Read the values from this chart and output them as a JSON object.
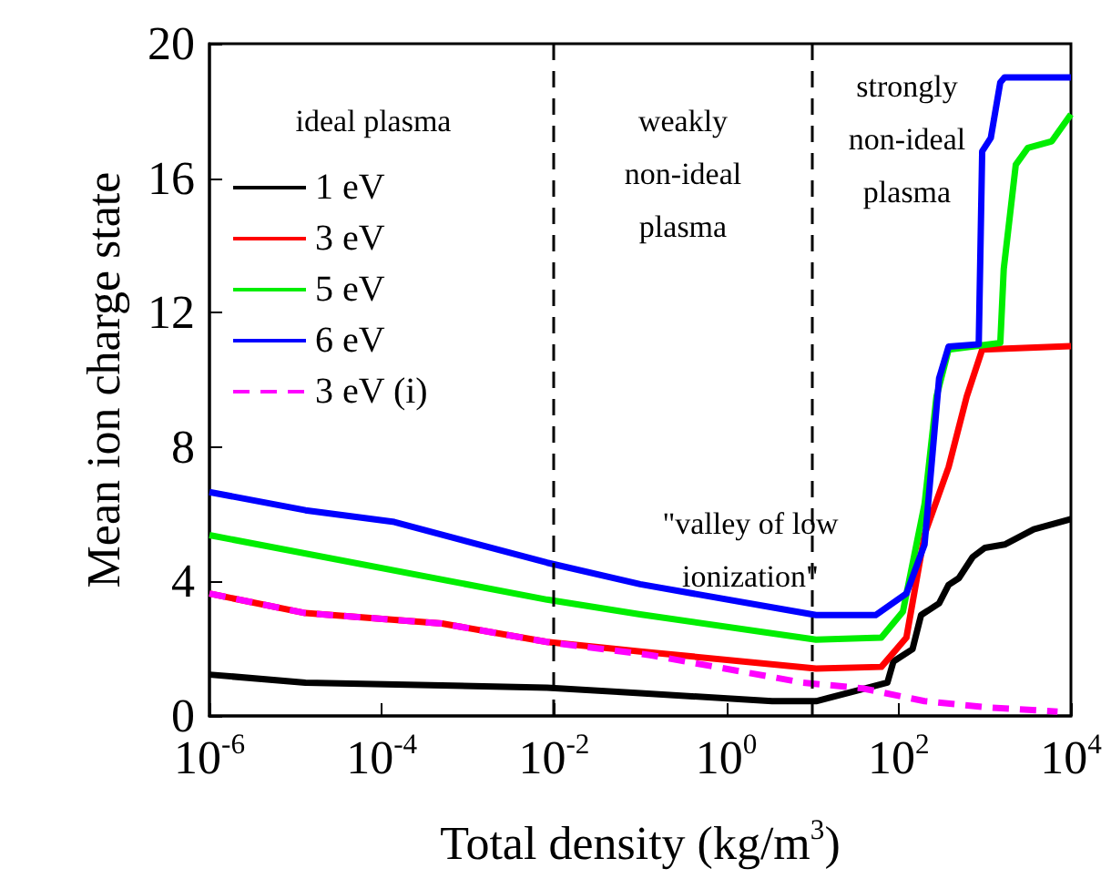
{
  "chart_data": {
    "type": "line",
    "xlabel": "Total density (kg/m$^{3}$)",
    "ylabel": "Mean ion charge state",
    "log": "x",
    "xlim": [
      1e-06,
      10000
    ],
    "ylim": [
      0,
      20
    ],
    "xticks": [
      {
        "value": 1e-06,
        "label": "10$^{-6}$"
      },
      {
        "value": 0.0001,
        "label": "10$^{-4}$"
      },
      {
        "value": 0.01,
        "label": "10$^{-2}$"
      },
      {
        "value": 1,
        "label": "10$^{0}$"
      },
      {
        "value": 100,
        "label": "10$^{2}$"
      },
      {
        "value": 10000,
        "label": "10$^{4}$"
      }
    ],
    "yticks": [
      0,
      4,
      8,
      12,
      16,
      20
    ],
    "grid": false,
    "legend": "top left",
    "marker": "none",
    "series": [
      {
        "name": "1 eV",
        "color": "#000000",
        "x": [
          1e-06,
          1.3e-05,
          0.0083,
          0.1,
          3.4,
          11,
          28,
          74,
          87,
          145,
          182,
          295,
          380,
          500,
          724,
          1000,
          1700,
          3700,
          10000
        ],
        "values": [
          1.23,
          0.99,
          0.84,
          0.68,
          0.44,
          0.44,
          0.71,
          0.99,
          1.62,
          1.99,
          3.0,
          3.35,
          3.9,
          4.1,
          4.73,
          5.0,
          5.1,
          5.55,
          5.86
        ]
      },
      {
        "name": "3 eV",
        "color": "#ff0000",
        "x": [
          1e-06,
          1.3e-05,
          0.0005,
          0.0083,
          0.1,
          11,
          63,
          123,
          200,
          380,
          617,
          933,
          10000
        ],
        "values": [
          3.64,
          3.06,
          2.75,
          2.2,
          1.92,
          1.41,
          1.46,
          2.33,
          5.4,
          7.4,
          9.5,
          10.9,
          11.0
        ]
      },
      {
        "name": "5 eV",
        "color": "#00ee00",
        "x": [
          1e-06,
          0.0083,
          0.1,
          11,
          63,
          112,
          200,
          275,
          380,
          1514,
          1660,
          2290,
          3160,
          6000,
          10000
        ],
        "values": [
          5.38,
          3.46,
          3.02,
          2.27,
          2.33,
          3.1,
          6.3,
          9.5,
          10.9,
          11.1,
          13.3,
          16.4,
          16.9,
          17.1,
          17.9
        ]
      },
      {
        "name": "6 eV",
        "color": "#0000ff",
        "x": [
          1e-06,
          1.3e-05,
          0.00014,
          0.0083,
          0.1,
          11,
          54,
          123,
          200,
          295,
          380,
          851,
          933,
          1175,
          1514,
          1700,
          10000
        ],
        "values": [
          6.66,
          6.12,
          5.77,
          4.56,
          3.92,
          3.0,
          3.0,
          3.64,
          5.1,
          10.05,
          10.99,
          11.06,
          16.8,
          17.2,
          18.85,
          19.0,
          19.0
        ]
      },
      {
        "name": "3 eV (i)",
        "color": "#ff00ff",
        "line_style": "dashed",
        "x": [
          1e-06,
          1.3e-05,
          0.0005,
          0.0083,
          0.13,
          7.8,
          38,
          200,
          1000,
          7000
        ],
        "values": [
          3.64,
          3.06,
          2.75,
          2.2,
          1.81,
          0.99,
          0.82,
          0.44,
          0.26,
          0.13
        ]
      }
    ],
    "ref_lines": [
      {
        "axis": "x",
        "value": 0.01,
        "color": "#000000",
        "line_style": "dashed"
      },
      {
        "axis": "x",
        "value": 10,
        "color": "#000000",
        "line_style": "dashed"
      }
    ],
    "annotations": [
      "ideal plasma",
      "weakly\nnon-ideal\nplasma",
      "strongly\nnon-ideal\nplasma",
      "\"valley of low\nionization\""
    ]
  }
}
